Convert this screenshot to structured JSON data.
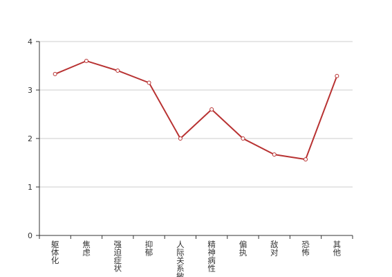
{
  "chart_data": {
    "type": "line",
    "categories": [
      "躯体化",
      "焦虑",
      "强迫症状",
      "抑郁",
      "人际关系敏感",
      "精神病性",
      "偏执",
      "敌对",
      "恐怖",
      "其他"
    ],
    "values": [
      3.33,
      3.6,
      3.4,
      3.15,
      2.0,
      2.6,
      2.0,
      1.67,
      1.57,
      3.29
    ],
    "color": "#b83232",
    "ylim": [
      0,
      4
    ],
    "yticks": [
      0,
      1,
      2,
      3,
      4
    ],
    "grid": true
  }
}
